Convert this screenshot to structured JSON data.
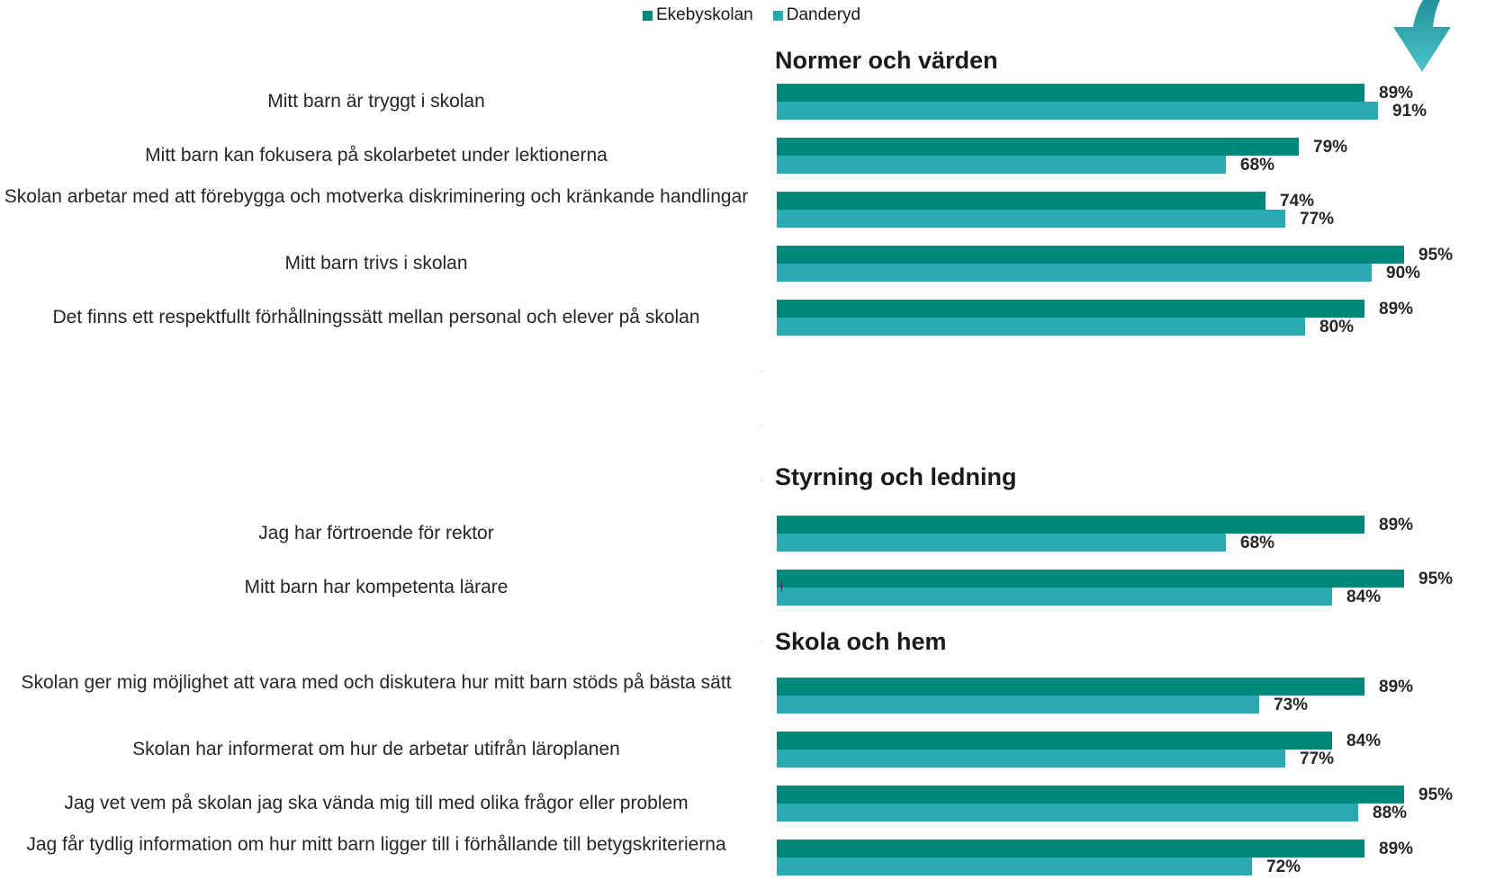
{
  "legend": {
    "items": [
      {
        "label": "Ekebyskolan",
        "color": "#00877c"
      },
      {
        "label": "Danderyd",
        "color": "#2ba9b3"
      }
    ]
  },
  "decoration": {
    "icon": "arrow-down-icon",
    "color": "#2ba9b3"
  },
  "chart_data": {
    "type": "bar",
    "orientation": "horizontal",
    "xlim": [
      0,
      100
    ],
    "unit": "%",
    "legend_position": "top",
    "grid": false,
    "series": [
      {
        "name": "Ekebyskolan",
        "color": "#00877c"
      },
      {
        "name": "Danderyd",
        "color": "#2ba9b3"
      }
    ],
    "sections": [
      {
        "title": "Normer och värden",
        "questions": [
          {
            "label": "Mitt barn är tryggt i skolan",
            "values": [
              89,
              91
            ]
          },
          {
            "label": "Mitt barn kan fokusera på skolarbetet under lektionerna",
            "values": [
              79,
              68
            ]
          },
          {
            "label": "Skolan arbetar med att förebygga och motverka diskriminering och kränkande handlingar",
            "values": [
              74,
              77
            ]
          },
          {
            "label": "Mitt barn trivs i skolan",
            "values": [
              95,
              90
            ]
          },
          {
            "label": "Det finns ett respektfullt förhållningssätt mellan personal och elever på skolan",
            "values": [
              89,
              80
            ]
          }
        ]
      },
      {
        "title": "Styrning och ledning",
        "questions": [
          {
            "label": "Jag har förtroende för rektor",
            "values": [
              89,
              68
            ]
          },
          {
            "label": "Mitt barn har kompetenta lärare",
            "values": [
              95,
              84
            ]
          }
        ]
      },
      {
        "title": "Skola och hem",
        "questions": [
          {
            "label": "Skolan ger mig möjlighet att vara med och diskutera hur mitt barn stöds på bästa sätt",
            "values": [
              89,
              73
            ]
          },
          {
            "label": "Skolan har informerat om hur de arbetar utifrån läroplanen",
            "values": [
              84,
              77
            ]
          },
          {
            "label": "Jag vet vem på skolan jag ska vända mig till med olika frågor eller problem",
            "values": [
              95,
              88
            ]
          },
          {
            "label": "Jag får tydlig information om hur mitt barn ligger till i förhållande till betygskriterierna",
            "values": [
              89,
              72
            ]
          }
        ]
      }
    ]
  }
}
